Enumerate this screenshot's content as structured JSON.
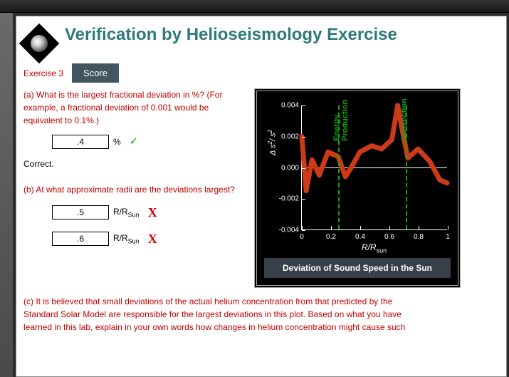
{
  "title": "Verification by Helioseismology Exercise",
  "exercise_label": "Exercise 3",
  "score_button": "Score",
  "parts": {
    "a": {
      "label": "(a)",
      "text": "What is the largest fractional deviation in %? (For example, a fractional deviation of 0.001 would be equivalent to 0.1%.)",
      "answer": ".4",
      "unit": "%",
      "mark": "correct",
      "feedback": "Correct."
    },
    "b": {
      "label": "(b)",
      "text": "At what approximate radii are the deviations largest?",
      "answers": [
        {
          "value": ".5",
          "unit_html": "R/R_sun",
          "mark": "wrong"
        },
        {
          "value": ".6",
          "unit_html": "R/R_sun",
          "mark": "wrong"
        }
      ]
    },
    "c": {
      "label": "(c)",
      "text": "It is believed that small deviations of the actual helium concentration from that predicted by the Standard Solar Model are responsible for the largest deviations in this plot. Based on what you have learned in this lab, explain in your own words how changes in helium concentration might cause such"
    }
  },
  "chart": {
    "type": "line",
    "caption": "Deviation of Sound Speed in the Sun",
    "xlabel": "R/R",
    "xlabel_sub": "sun",
    "ylabel": "Δ s²/ s²",
    "ylim": [
      -0.004,
      0.004
    ],
    "yticks": [
      -0.004,
      -0.002,
      0.0,
      0.002,
      0.004
    ],
    "xlim": [
      0,
      1
    ],
    "xticks": [
      0,
      0.2,
      0.4,
      0.6,
      0.8,
      1
    ],
    "line_color": "#cc3a18",
    "line_width": 7,
    "background": "#000000",
    "axis_color": "#ffffff",
    "grid_color": "#ffffff",
    "regions": [
      {
        "x": 0.25,
        "label": "Energy\nProduction",
        "color": "#13a813"
      },
      {
        "x": 0.71,
        "label": "Convection",
        "color": "#13a813"
      }
    ],
    "series": [
      {
        "x": 0.0,
        "y": 0.002
      },
      {
        "x": 0.03,
        "y": -0.0015
      },
      {
        "x": 0.07,
        "y": 0.0005
      },
      {
        "x": 0.12,
        "y": -0.0005
      },
      {
        "x": 0.18,
        "y": 0.001
      },
      {
        "x": 0.25,
        "y": 0.0007
      },
      {
        "x": 0.3,
        "y": -0.0006
      },
      {
        "x": 0.34,
        "y": 0.0
      },
      {
        "x": 0.4,
        "y": 0.001
      },
      {
        "x": 0.48,
        "y": 0.0014
      },
      {
        "x": 0.55,
        "y": 0.0012
      },
      {
        "x": 0.62,
        "y": 0.0018
      },
      {
        "x": 0.66,
        "y": 0.004
      },
      {
        "x": 0.7,
        "y": 0.002
      },
      {
        "x": 0.73,
        "y": 0.0006
      },
      {
        "x": 0.8,
        "y": 0.0012
      },
      {
        "x": 0.88,
        "y": 0.0004
      },
      {
        "x": 0.95,
        "y": -0.0008
      },
      {
        "x": 1.0,
        "y": -0.001
      }
    ]
  }
}
